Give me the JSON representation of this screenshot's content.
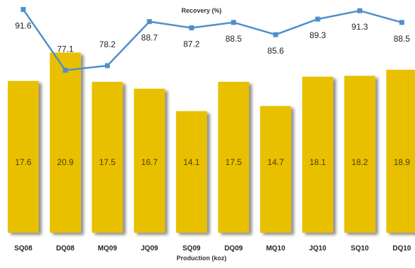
{
  "chart_data": {
    "type": "bar",
    "categories": [
      "SQ08",
      "DQ08",
      "MQ09",
      "JQ09",
      "SQ09",
      "DQ09",
      "MQ10",
      "JQ10",
      "SQ10",
      "DQ10"
    ],
    "xlabel": "Production (koz)",
    "series": [
      {
        "name": "Production (koz)",
        "type": "bar",
        "values": [
          17.6,
          20.9,
          17.5,
          16.7,
          14.1,
          17.5,
          14.7,
          18.1,
          18.2,
          18.9
        ],
        "labels": [
          "17.6",
          "20.9",
          "17.5",
          "16.7",
          "14.1",
          "17.5",
          "14.7",
          "18.1",
          "18.2",
          "18.9"
        ]
      },
      {
        "name": "Recovery (%)",
        "type": "line",
        "values": [
          91.6,
          77.1,
          78.2,
          88.7,
          87.2,
          88.5,
          85.6,
          89.3,
          91.3,
          88.5
        ],
        "labels": [
          "91.6",
          "77.1",
          "78.2",
          "88.7",
          "87.2",
          "88.5",
          "85.6",
          "89.3",
          "91.3",
          "88.5"
        ]
      }
    ],
    "bar_range": [
      0,
      22
    ],
    "line_range": [
      73,
      92
    ],
    "colors": {
      "bar": "#E8C000",
      "line": "#4F8FCB",
      "marker": "#4F8FCB"
    }
  }
}
